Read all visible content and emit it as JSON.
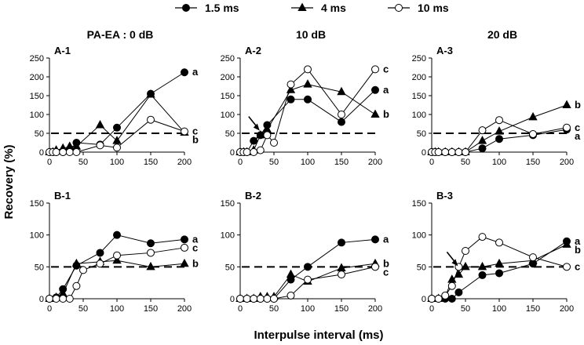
{
  "legend": [
    {
      "name": "1.5 ms",
      "marker": "filled-circle",
      "color": "#000000"
    },
    {
      "name": "4 ms",
      "marker": "filled-triangle",
      "color": "#000000"
    },
    {
      "name": "10 ms",
      "marker": "open-circle",
      "color": "#ffffff"
    }
  ],
  "axes": {
    "xlabel": "Interpulse interval (ms)",
    "ylabel": "Recovery (%)"
  },
  "chart_data": [
    {
      "type": "line",
      "id": "A-1",
      "label": "A-1",
      "column_title": "PA-EA : 0 dB",
      "xlim": [
        0,
        200
      ],
      "ylim": [
        0,
        250
      ],
      "xticks": [
        0,
        50,
        100,
        150,
        200
      ],
      "yticks": [
        0,
        50,
        100,
        150,
        200,
        250
      ],
      "reference_line": 50,
      "series": [
        {
          "name": "1.5 ms",
          "tag": "a",
          "x": [
            0,
            5,
            10,
            20,
            30,
            40,
            75,
            100,
            150,
            200
          ],
          "values": [
            0,
            0,
            0,
            0,
            5,
            25,
            20,
            65,
            155,
            212
          ]
        },
        {
          "name": "4 ms",
          "tag": "b",
          "x": [
            0,
            5,
            10,
            20,
            30,
            40,
            75,
            100,
            150,
            200
          ],
          "values": [
            0,
            0,
            5,
            10,
            15,
            15,
            72,
            30,
            153,
            52
          ]
        },
        {
          "name": "10 ms",
          "tag": "c",
          "x": [
            0,
            5,
            10,
            20,
            30,
            40,
            75,
            100,
            150,
            200
          ],
          "values": [
            0,
            0,
            0,
            0,
            0,
            0,
            18,
            12,
            86,
            55
          ]
        }
      ]
    },
    {
      "type": "line",
      "id": "A-2",
      "label": "A-2",
      "column_title": "10 dB",
      "xlim": [
        0,
        200
      ],
      "ylim": [
        0,
        250
      ],
      "xticks": [
        0,
        50,
        100,
        150,
        200
      ],
      "yticks": [
        0,
        50,
        100,
        150,
        200,
        250
      ],
      "reference_line": 50,
      "arrow_at": {
        "x": 30,
        "y": 55
      },
      "series": [
        {
          "name": "1.5 ms",
          "tag": "a",
          "x": [
            0,
            5,
            10,
            20,
            30,
            40,
            75,
            100,
            150,
            200
          ],
          "values": [
            0,
            0,
            0,
            30,
            45,
            72,
            140,
            140,
            80,
            165
          ]
        },
        {
          "name": "4 ms",
          "tag": "b",
          "x": [
            0,
            5,
            10,
            20,
            30,
            40,
            75,
            100,
            150,
            200
          ],
          "values": [
            0,
            0,
            0,
            5,
            45,
            60,
            165,
            180,
            160,
            100
          ]
        },
        {
          "name": "10 ms",
          "tag": "c",
          "x": [
            0,
            5,
            10,
            20,
            30,
            40,
            50,
            75,
            100,
            150,
            200
          ],
          "values": [
            0,
            0,
            0,
            0,
            5,
            45,
            25,
            180,
            220,
            100,
            220
          ]
        }
      ]
    },
    {
      "type": "line",
      "id": "A-3",
      "label": "A-3",
      "column_title": "20 dB",
      "xlim": [
        0,
        200
      ],
      "ylim": [
        0,
        250
      ],
      "xticks": [
        0,
        50,
        100,
        150,
        200
      ],
      "yticks": [
        0,
        50,
        100,
        150,
        200,
        250
      ],
      "reference_line": 50,
      "series": [
        {
          "name": "1.5 ms",
          "tag": "a",
          "x": [
            0,
            5,
            10,
            20,
            30,
            40,
            50,
            75,
            100,
            150,
            200
          ],
          "values": [
            0,
            0,
            0,
            0,
            0,
            0,
            0,
            10,
            35,
            45,
            60
          ]
        },
        {
          "name": "4 ms",
          "tag": "b",
          "x": [
            0,
            5,
            10,
            20,
            30,
            40,
            50,
            75,
            100,
            150,
            200
          ],
          "values": [
            0,
            0,
            0,
            0,
            0,
            0,
            0,
            30,
            55,
            93,
            125
          ]
        },
        {
          "name": "10 ms",
          "tag": "c",
          "x": [
            0,
            5,
            10,
            20,
            30,
            40,
            50,
            75,
            100,
            150,
            200
          ],
          "values": [
            0,
            0,
            0,
            0,
            0,
            0,
            0,
            58,
            85,
            48,
            65
          ]
        }
      ]
    },
    {
      "type": "line",
      "id": "B-1",
      "label": "B-1",
      "column_title": "",
      "xlim": [
        0,
        200
      ],
      "ylim": [
        0,
        150
      ],
      "xticks": [
        0,
        50,
        100,
        150,
        200
      ],
      "yticks": [
        0,
        50,
        100,
        150
      ],
      "reference_line": 50,
      "series": [
        {
          "name": "1.5 ms",
          "tag": "a",
          "x": [
            0,
            10,
            20,
            40,
            75,
            100,
            150,
            200
          ],
          "values": [
            0,
            2,
            15,
            52,
            72,
            100,
            87,
            93
          ]
        },
        {
          "name": "4 ms",
          "tag": "b",
          "x": [
            0,
            10,
            20,
            40,
            75,
            100,
            150,
            200
          ],
          "values": [
            0,
            2,
            8,
            55,
            58,
            60,
            50,
            55
          ]
        },
        {
          "name": "10 ms",
          "tag": "c",
          "x": [
            0,
            10,
            20,
            30,
            40,
            50,
            75,
            100,
            150,
            200
          ],
          "values": [
            0,
            0,
            0,
            0,
            20,
            45,
            55,
            68,
            72,
            80
          ]
        }
      ]
    },
    {
      "type": "line",
      "id": "B-2",
      "label": "B-2",
      "column_title": "",
      "xlim": [
        0,
        200
      ],
      "ylim": [
        0,
        150
      ],
      "xticks": [
        0,
        50,
        100,
        150,
        200
      ],
      "yticks": [
        0,
        50,
        100,
        150
      ],
      "reference_line": 50,
      "series": [
        {
          "name": "1.5 ms",
          "tag": "a",
          "x": [
            0,
            10,
            20,
            30,
            40,
            50,
            75,
            100,
            150,
            200
          ],
          "values": [
            0,
            0,
            0,
            0,
            0,
            0,
            30,
            50,
            88,
            93
          ]
        },
        {
          "name": "4 ms",
          "tag": "b",
          "x": [
            0,
            10,
            20,
            30,
            40,
            50,
            75,
            100,
            150,
            200
          ],
          "values": [
            0,
            0,
            0,
            3,
            3,
            3,
            38,
            27,
            48,
            55
          ]
        },
        {
          "name": "10 ms",
          "tag": "c",
          "x": [
            0,
            10,
            20,
            30,
            40,
            50,
            75,
            100,
            150,
            200
          ],
          "values": [
            0,
            0,
            0,
            0,
            0,
            0,
            5,
            30,
            38,
            50
          ]
        }
      ]
    },
    {
      "type": "line",
      "id": "B-3",
      "label": "B-3",
      "column_title": "",
      "xlim": [
        0,
        200
      ],
      "ylim": [
        0,
        150
      ],
      "xticks": [
        0,
        50,
        100,
        150,
        200
      ],
      "yticks": [
        0,
        50,
        100,
        150
      ],
      "reference_line": 50,
      "arrow_at": {
        "x": 40,
        "y": 50
      },
      "series": [
        {
          "name": "1.5 ms",
          "tag": "a",
          "x": [
            0,
            10,
            20,
            30,
            40,
            75,
            100,
            150,
            200
          ],
          "values": [
            0,
            0,
            0,
            0,
            10,
            37,
            40,
            55,
            90
          ]
        },
        {
          "name": "4 ms",
          "tag": "b",
          "x": [
            0,
            10,
            20,
            30,
            40,
            50,
            75,
            100,
            150,
            200
          ],
          "values": [
            0,
            0,
            3,
            30,
            38,
            50,
            50,
            55,
            60,
            85
          ]
        },
        {
          "name": "10 ms",
          "tag": "c",
          "x": [
            0,
            10,
            20,
            30,
            40,
            50,
            75,
            100,
            150,
            200
          ],
          "values": [
            0,
            0,
            5,
            20,
            50,
            75,
            97,
            88,
            65,
            50
          ]
        }
      ]
    }
  ]
}
